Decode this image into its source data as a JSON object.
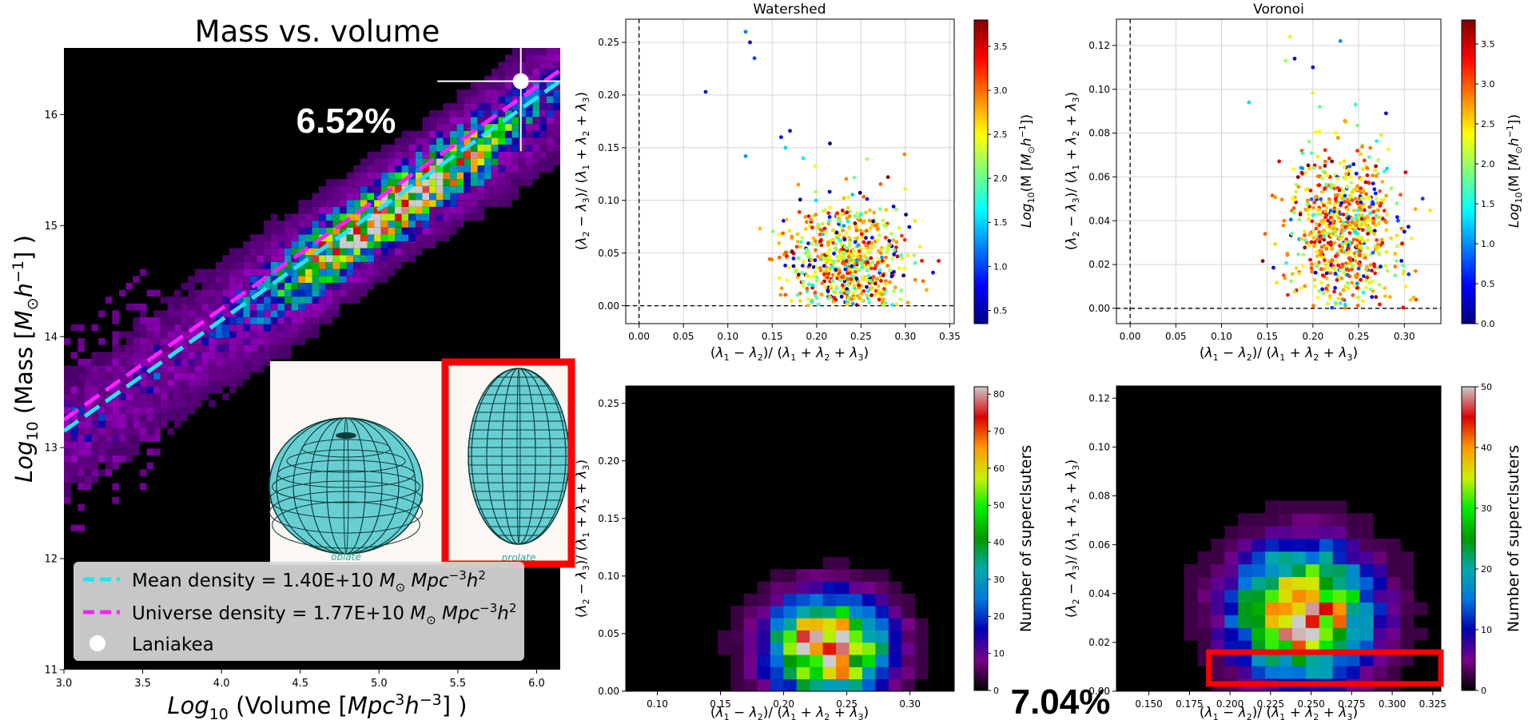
{
  "figure": {
    "main_title": "Mass vs. volume",
    "annotation_top": "6.52%",
    "annotation_bottom": "7.04%",
    "inset": {
      "label_left": "oblate",
      "label_right": "prolate"
    }
  },
  "chart_data": [
    {
      "id": "mass-volume",
      "type": "heatmap",
      "title": "Mass vs. volume",
      "xlabel": "Log10 (Volume [Mpc^3 h^-3] )",
      "ylabel": "Log10 (Mass [M_sun h^-1] )",
      "xlim": [
        3.0,
        6.15
      ],
      "ylim": [
        11.0,
        16.6
      ],
      "xticks": [
        "3.0",
        "3.5",
        "4.0",
        "4.5",
        "5.0",
        "5.5",
        "6.0"
      ],
      "xtick_values": [
        3.0,
        3.5,
        4.0,
        4.5,
        5.0,
        5.5,
        6.0
      ],
      "yticks": [
        "11",
        "12",
        "13",
        "14",
        "15",
        "16"
      ],
      "ytick_values": [
        11,
        12,
        13,
        14,
        15,
        16
      ],
      "background": "#000000",
      "density_ridge": {
        "x": [
          3.0,
          6.15
        ],
        "y": [
          13.1,
          16.2
        ]
      },
      "lines": [
        {
          "name": "Mean density = 1.40E+10 M⊙ Mpc⁻³h²",
          "color": "#22e5f0",
          "dash": true,
          "x": [
            3.0,
            6.15
          ],
          "y": [
            13.15,
            16.3
          ]
        },
        {
          "name": "Universe density = 1.77E+10 M⊙ Mpc⁻³h²",
          "color": "#ff22ff",
          "dash": true,
          "x": [
            3.0,
            6.15
          ],
          "y": [
            13.25,
            16.4
          ]
        }
      ],
      "point": {
        "name": "Laniakea",
        "x": 5.9,
        "y": 16.3,
        "xerr": 0.53,
        "yerr": 0.63,
        "color": "#ffffff"
      },
      "legend": [
        "Mean density = 1.40E+10 M⊙ Mpc⁻³h²",
        "Universe density = 1.77E+10 M⊙ Mpc⁻³h²",
        "Laniakea"
      ],
      "legend_position": "bottom"
    },
    {
      "id": "watershed-scatter",
      "type": "scatter",
      "title": "Watershed",
      "xlabel": "(λ1 − λ2)/ (λ1 + λ2 + λ3)",
      "ylabel": "(λ2 − λ3)/ (λ1 + λ2 + λ3)",
      "xlim": [
        -0.015,
        0.355
      ],
      "ylim": [
        -0.017,
        0.272
      ],
      "xticks": [
        "0.00",
        "0.05",
        "0.10",
        "0.15",
        "0.20",
        "0.25",
        "0.30",
        "0.35"
      ],
      "xtick_values": [
        0,
        0.05,
        0.1,
        0.15,
        0.2,
        0.25,
        0.3,
        0.35
      ],
      "yticks": [
        "0.00",
        "0.05",
        "0.10",
        "0.15",
        "0.20",
        "0.25"
      ],
      "ytick_values": [
        0,
        0.05,
        0.1,
        0.15,
        0.2,
        0.25
      ],
      "grid": true,
      "colorbar": {
        "label": "Log10(M [M_sun h^-1])",
        "ticks": [
          "0.5",
          "1.0",
          "1.5",
          "2.0",
          "2.5",
          "3.0",
          "3.5"
        ],
        "tick_values": [
          0.5,
          1,
          1.5,
          2,
          2.5,
          3,
          3.5
        ],
        "range": [
          0.35,
          3.8
        ],
        "colormap": "jet"
      },
      "cluster": {
        "cx": 0.235,
        "sx": 0.035,
        "cy": 0.045,
        "sy": 0.025,
        "n": 620
      },
      "outliers": [
        {
          "x": 0.075,
          "y": 0.203,
          "c": 0.7
        },
        {
          "x": 0.12,
          "y": 0.26,
          "c": 1.2
        },
        {
          "x": 0.125,
          "y": 0.25,
          "c": 0.5
        },
        {
          "x": 0.13,
          "y": 0.235,
          "c": 1.0
        },
        {
          "x": 0.16,
          "y": 0.16,
          "c": 0.8
        },
        {
          "x": 0.17,
          "y": 0.166,
          "c": 0.6
        },
        {
          "x": 0.215,
          "y": 0.154,
          "c": 0.4
        },
        {
          "x": 0.12,
          "y": 0.142,
          "c": 1.3
        },
        {
          "x": 0.165,
          "y": 0.15,
          "c": 1.5
        },
        {
          "x": 0.185,
          "y": 0.14,
          "c": 1.6
        }
      ]
    },
    {
      "id": "voronoi-scatter",
      "type": "scatter",
      "title": "Voronoi",
      "xlabel": "(λ1 − λ2)/ (λ1 + λ2 + λ3)",
      "ylabel": "(λ2 − λ3)/ (λ1 + λ2 + λ3)",
      "xlim": [
        -0.015,
        0.34
      ],
      "ylim": [
        -0.007,
        0.132
      ],
      "xticks": [
        "0.00",
        "0.05",
        "0.10",
        "0.15",
        "0.20",
        "0.25",
        "0.30"
      ],
      "xtick_values": [
        0,
        0.05,
        0.1,
        0.15,
        0.2,
        0.25,
        0.3
      ],
      "yticks": [
        "0.00",
        "0.02",
        "0.04",
        "0.06",
        "0.08",
        "0.10",
        "0.12"
      ],
      "ytick_values": [
        0,
        0.02,
        0.04,
        0.06,
        0.08,
        0.1,
        0.12
      ],
      "grid": true,
      "colorbar": {
        "label": "Log10(M [M_sun h^-1])",
        "ticks": [
          "0.0",
          "0.5",
          "1.0",
          "1.5",
          "2.0",
          "2.5",
          "3.0",
          "3.5"
        ],
        "tick_values": [
          0,
          0.5,
          1,
          1.5,
          2,
          2.5,
          3,
          3.5
        ],
        "range": [
          0,
          3.8
        ],
        "colormap": "jet"
      },
      "cluster": {
        "cx": 0.235,
        "sx": 0.03,
        "cy": 0.035,
        "sy": 0.018,
        "n": 720
      },
      "outliers": [
        {
          "x": 0.13,
          "y": 0.094,
          "c": 1.3
        },
        {
          "x": 0.23,
          "y": 0.122,
          "c": 1.0
        },
        {
          "x": 0.175,
          "y": 0.124,
          "c": 2.2
        },
        {
          "x": 0.17,
          "y": 0.113,
          "c": 2.0
        },
        {
          "x": 0.18,
          "y": 0.114,
          "c": 0.2
        },
        {
          "x": 0.2,
          "y": 0.11,
          "c": 0.3
        },
        {
          "x": 0.28,
          "y": 0.089,
          "c": 0.2
        },
        {
          "x": 0.3,
          "y": 0.035,
          "c": 0.3
        }
      ]
    },
    {
      "id": "watershed-hist",
      "type": "heatmap",
      "title": "",
      "xlabel": "(λ1 − λ2)/ (λ1 + λ2 + λ3)",
      "ylabel": "(λ2 − λ3)/ (λ1 + λ2 + λ3)",
      "xlim": [
        0.075,
        0.335
      ],
      "ylim": [
        0.0,
        0.265
      ],
      "xticks": [
        "0.10",
        "0.15",
        "0.20",
        "0.25",
        "0.30"
      ],
      "xtick_values": [
        0.1,
        0.15,
        0.2,
        0.25,
        0.3
      ],
      "yticks": [
        "0.00",
        "0.05",
        "0.10",
        "0.15",
        "0.20",
        "0.25"
      ],
      "ytick_values": [
        0,
        0.05,
        0.1,
        0.15,
        0.2,
        0.25
      ],
      "colorbar": {
        "label": "Number of superclsuters",
        "ticks": [
          "0",
          "10",
          "20",
          "30",
          "40",
          "50",
          "60",
          "70",
          "80"
        ],
        "tick_values": [
          0,
          10,
          20,
          30,
          40,
          50,
          60,
          70,
          80
        ],
        "range": [
          0,
          82
        ],
        "colormap": "nipy_spectral"
      },
      "bins": {
        "nx": 25,
        "ny": 25,
        "cx": 0.235,
        "sx": 0.03,
        "cy": 0.038,
        "sy": 0.028,
        "peak": 82
      }
    },
    {
      "id": "voronoi-hist",
      "type": "heatmap",
      "title": "",
      "xlabel": "(λ1 − λ2)/ (λ1 + λ2 + λ3)",
      "ylabel": "(λ2 − λ3)/ (λ1 + λ2 + λ3)",
      "xlim": [
        0.13,
        0.33
      ],
      "ylim": [
        0.0,
        0.125
      ],
      "xticks": [
        "0.150",
        "0.175",
        "0.200",
        "0.225",
        "0.250",
        "0.275",
        "0.300",
        "0.325"
      ],
      "xtick_values": [
        0.15,
        0.175,
        0.2,
        0.225,
        0.25,
        0.275,
        0.3,
        0.325
      ],
      "yticks": [
        "0.00",
        "0.02",
        "0.04",
        "0.06",
        "0.08",
        "0.10",
        "0.12"
      ],
      "ytick_values": [
        0,
        0.02,
        0.04,
        0.06,
        0.08,
        0.1,
        0.12
      ],
      "colorbar": {
        "label": "Number of superclsuters",
        "ticks": [
          "0",
          "10",
          "20",
          "30",
          "40",
          "50"
        ],
        "tick_values": [
          0,
          10,
          20,
          30,
          40,
          50
        ],
        "range": [
          0,
          50
        ],
        "colormap": "nipy_spectral"
      },
      "bins": {
        "nx": 24,
        "ny": 24,
        "cx": 0.245,
        "sx": 0.027,
        "cy": 0.032,
        "sy": 0.017,
        "peak": 50
      },
      "highlight": {
        "x": [
          0.187,
          0.33
        ],
        "y": [
          0.003,
          0.016
        ],
        "color": "#ff0000"
      }
    }
  ]
}
